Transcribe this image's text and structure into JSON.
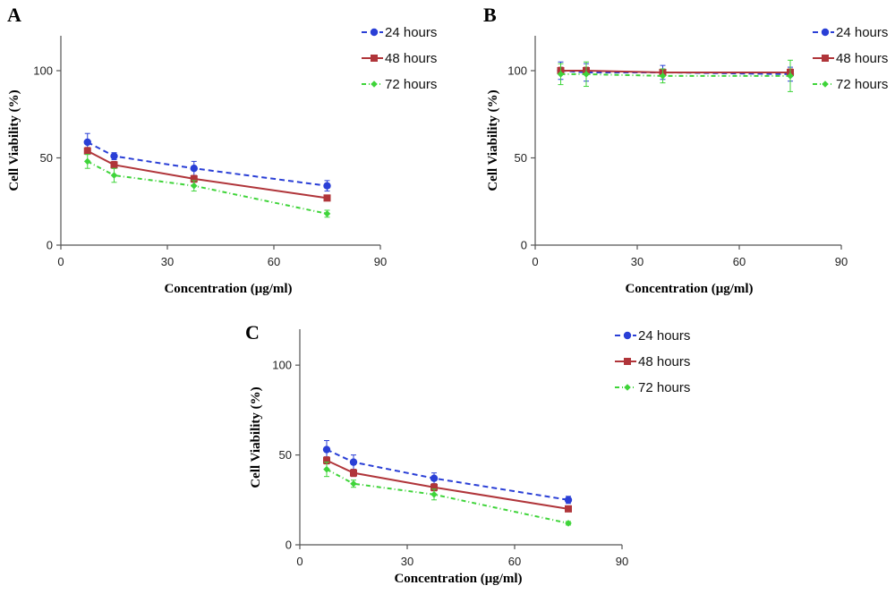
{
  "chart_data": [
    {
      "panel": "A",
      "type": "line",
      "xlabel": "Concentration (μg/ml)",
      "ylabel": "Cell Viability (%)",
      "xlim": [
        0,
        90
      ],
      "ylim": [
        0,
        120
      ],
      "xticks": [
        0,
        30,
        60,
        90
      ],
      "yticks": [
        0,
        50,
        100
      ],
      "grid": false,
      "legend_position": "top-right",
      "x": [
        7.5,
        15,
        37.5,
        75
      ],
      "series": [
        {
          "name": "24 hours",
          "color": "#2a3fd6",
          "dash": "6,4",
          "marker": "circle",
          "values": [
            59,
            51,
            44,
            34
          ],
          "errors": [
            5,
            2,
            4,
            3
          ]
        },
        {
          "name": "48 hours",
          "color": "#b0353a",
          "dash": "",
          "marker": "square",
          "values": [
            54,
            46,
            38,
            27
          ],
          "errors": [
            2,
            2,
            2,
            1
          ]
        },
        {
          "name": "72 hours",
          "color": "#3fd43a",
          "dash": "5,3,1,3",
          "marker": "diamond",
          "values": [
            48,
            40,
            34,
            18
          ],
          "errors": [
            4,
            4,
            3,
            2
          ]
        }
      ]
    },
    {
      "panel": "B",
      "type": "line",
      "xlabel": "Concentration (μg/ml)",
      "ylabel": "Cell Viability (%)",
      "xlim": [
        0,
        90
      ],
      "ylim": [
        0,
        120
      ],
      "xticks": [
        0,
        30,
        60,
        90
      ],
      "yticks": [
        0,
        50,
        100
      ],
      "grid": false,
      "legend_position": "top-right",
      "x": [
        7.5,
        15,
        37.5,
        75
      ],
      "series": [
        {
          "name": "24 hours",
          "color": "#2a3fd6",
          "dash": "6,4",
          "marker": "circle",
          "values": [
            100,
            99,
            99,
            98
          ],
          "errors": [
            5,
            5,
            4,
            4
          ]
        },
        {
          "name": "48 hours",
          "color": "#b0353a",
          "dash": "",
          "marker": "square",
          "values": [
            100,
            100,
            99,
            99
          ],
          "errors": [
            2,
            2,
            2,
            2
          ]
        },
        {
          "name": "72 hours",
          "color": "#3fd43a",
          "dash": "5,3,1,3",
          "marker": "diamond",
          "values": [
            98,
            98,
            97,
            97
          ],
          "errors": [
            6,
            7,
            4,
            9
          ]
        }
      ]
    },
    {
      "panel": "C",
      "type": "line",
      "xlabel": "Concentration (μg/ml)",
      "ylabel": "Cell Viability (%)",
      "xlim": [
        0,
        90
      ],
      "ylim": [
        0,
        120
      ],
      "xticks": [
        0,
        30,
        60,
        90
      ],
      "yticks": [
        0,
        50,
        100
      ],
      "grid": false,
      "legend_position": "top-right",
      "x": [
        7.5,
        15,
        37.5,
        75
      ],
      "series": [
        {
          "name": "24 hours",
          "color": "#2a3fd6",
          "dash": "6,4",
          "marker": "circle",
          "values": [
            53,
            46,
            37,
            25
          ],
          "errors": [
            5,
            4,
            3,
            2
          ]
        },
        {
          "name": "48 hours",
          "color": "#b0353a",
          "dash": "",
          "marker": "square",
          "values": [
            47,
            40,
            32,
            20
          ],
          "errors": [
            2,
            2,
            2,
            1
          ]
        },
        {
          "name": "72 hours",
          "color": "#3fd43a",
          "dash": "5,3,1,3",
          "marker": "diamond",
          "values": [
            42,
            34,
            28,
            12
          ],
          "errors": [
            4,
            2,
            3,
            1
          ]
        }
      ]
    }
  ]
}
